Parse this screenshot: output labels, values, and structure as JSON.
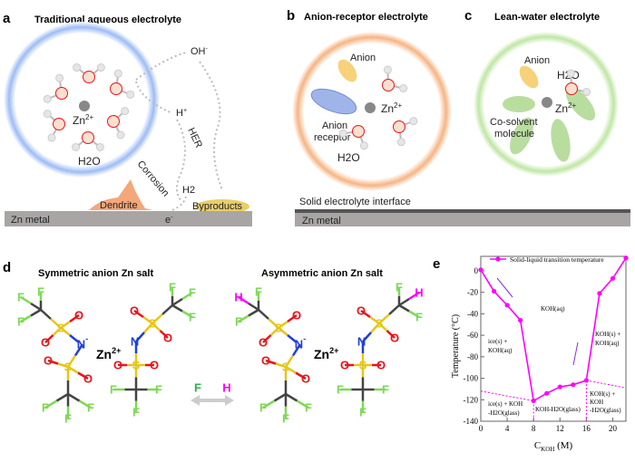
{
  "panels": {
    "a": {
      "label": "a",
      "title": "Traditional aqueous electrolyte",
      "zn": "Zn",
      "zn_sup": "2+",
      "h2o": "H2O",
      "oh": "OH",
      "oh_sup": "-",
      "h": "H",
      "h_sup": "+",
      "her": "HER",
      "corrosion": "Corrosion",
      "h2": "H2",
      "dendrite": "Dendrite",
      "byproducts": "Byproducts",
      "e": "e",
      "e_sup": "-",
      "metal": "Zn metal"
    },
    "b": {
      "label": "b",
      "title": "Anion-receptor electrolyte",
      "anion": "Anion",
      "receptor1": "Anion",
      "receptor2": "receptor",
      "zn": "Zn",
      "zn_sup": "2+",
      "h2o": "H2O"
    },
    "c": {
      "label": "c",
      "title": "Lean-water electrolyte",
      "anion": "Anion",
      "h2o": "H2O",
      "zn": "Zn",
      "zn_sup": "2+",
      "cosolvent1": "Co-solvent",
      "cosolvent2": "molecule",
      "sei": "Solid electrolyte interface",
      "metal": "Zn metal"
    },
    "d": {
      "label": "d",
      "title_sym": "Symmetric anion Zn salt",
      "title_asym": "Asymmetric anion Zn salt",
      "zn": "Zn",
      "zn_sup": "2+",
      "swap_from": "F",
      "swap_to": "H",
      "atoms": {
        "F": "F",
        "O": "O",
        "S": "S",
        "N": "N",
        "H": "H",
        "N_sup": "-"
      }
    },
    "e": {
      "label": "e"
    }
  },
  "colors": {
    "F": "#7ed957",
    "O": "#e8141c",
    "S": "#e6c619",
    "N": "#1f3fd6",
    "H": "#ff00ff",
    "curve": "#ff00ff",
    "arrow": "#8a2be2"
  },
  "chart_data": {
    "type": "line",
    "title": "",
    "legend": "Solid-liquid transition temperature",
    "legend_position": "top",
    "xlabel": "C",
    "xlabel_sub": "KOH",
    "xlabel_unit": " (M)",
    "ylabel": "Temperature (°C)",
    "xlim": [
      0,
      22
    ],
    "ylim": [
      -140,
      15
    ],
    "xticks": [
      0,
      4,
      8,
      12,
      16,
      20
    ],
    "yticks": [
      0,
      -20,
      -40,
      -60,
      -80,
      -100,
      -120,
      -140
    ],
    "series": [
      {
        "name": "Solid-liquid transition temperature",
        "x": [
          0,
          2,
          4,
          6,
          8,
          10,
          12,
          14,
          16,
          18,
          20,
          22
        ],
        "y": [
          1,
          -19,
          -32,
          -46,
          -121,
          -114,
          -108,
          -106,
          -102,
          -21,
          -7,
          12
        ]
      }
    ],
    "annotations": [
      "KOH(aq)",
      "ice(s) +",
      "KOH(aq)",
      "KOH(s) +",
      "KOH(aq)",
      "ice(s) + KOH",
      "-H2O(glass)",
      "KOH-H2O(glass)",
      "KOH(s) +",
      "KOH",
      "-H2O(glass)"
    ]
  }
}
